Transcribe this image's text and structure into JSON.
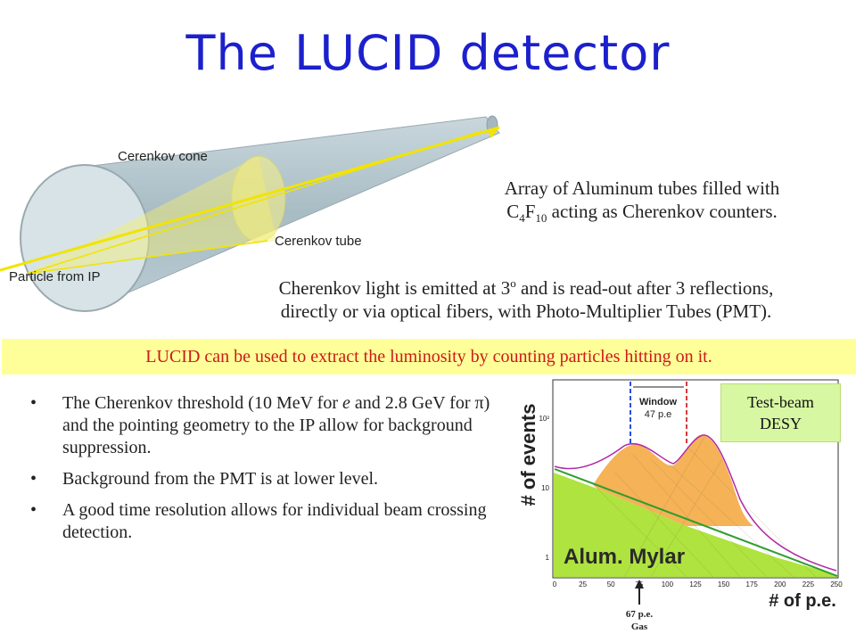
{
  "title": "The LUCID detector",
  "diagram": {
    "cerenkov_cone_label": "Cerenkov cone",
    "cerenkov_tube_label": "Cerenkov tube",
    "particle_label": "Particle from IP"
  },
  "array_text": {
    "line1": "Array of Aluminum tubes filled with",
    "c": "C",
    "sub4": "4",
    "f": "F",
    "sub10": "10",
    "rest": " acting as Cherenkov counters."
  },
  "light_text": {
    "line1_pre": "Cherenkov light is emitted at 3",
    "line1_sup": "o",
    "line1_post": " and is read-out after 3 reflections,",
    "line2": "directly or via optical fibers, with Photo-Multiplier Tubes (PMT)."
  },
  "highlight": "LUCID can be used to extract the luminosity by counting particles hitting on it.",
  "bullets": {
    "b1_pre": "The Cherenkov threshold (10 MeV for ",
    "b1_e": "e",
    "b1_mid": " and 2.8 GeV for ",
    "b1_pi": "π",
    "b1_post": ") and the pointing geometry to the IP allow for background suppression.",
    "b2": "Background from the PMT is at lower level.",
    "b3": "A good time resolution allows for individual beam crossing detection."
  },
  "testbeam": {
    "line1": "Test-beam",
    "line2": "DESY"
  },
  "chart_data": {
    "type": "area",
    "title": "",
    "xlabel": "# of p.e.",
    "ylabel": "# of events",
    "x_ticks": [
      "0",
      "25",
      "50",
      "75",
      "100",
      "125",
      "150",
      "175",
      "200",
      "225",
      "250"
    ],
    "y_ticks": [
      "1",
      "10",
      "10²"
    ],
    "xlim": [
      0,
      250
    ],
    "window_label": "Window",
    "window_value": "47 p.e",
    "annotation_text": "Alum. Mylar",
    "gas_value": "67 p.e.",
    "gas_label": "Gas",
    "peaks_x": [
      67,
      114
    ]
  }
}
